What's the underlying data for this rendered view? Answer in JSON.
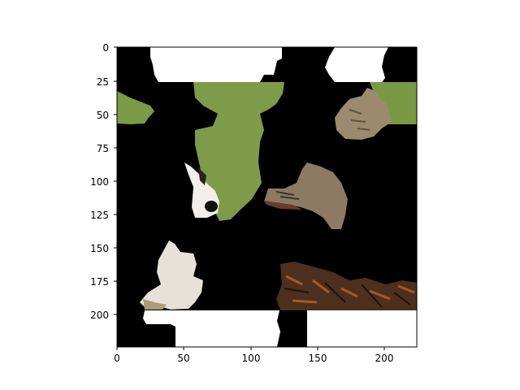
{
  "figure": {
    "image_content": "masked-animal-collage",
    "x_ticks": [
      "0",
      "50",
      "100",
      "150",
      "200"
    ],
    "y_ticks": [
      "0",
      "25",
      "50",
      "75",
      "100",
      "125",
      "150",
      "175",
      "200"
    ],
    "x_range": [
      0,
      224
    ],
    "y_range": [
      0,
      224
    ],
    "y_inverted": true,
    "colors": {
      "mask": "#000000",
      "background": "#ffffff",
      "grass": "#7b9a45",
      "tick": "#000000"
    }
  }
}
